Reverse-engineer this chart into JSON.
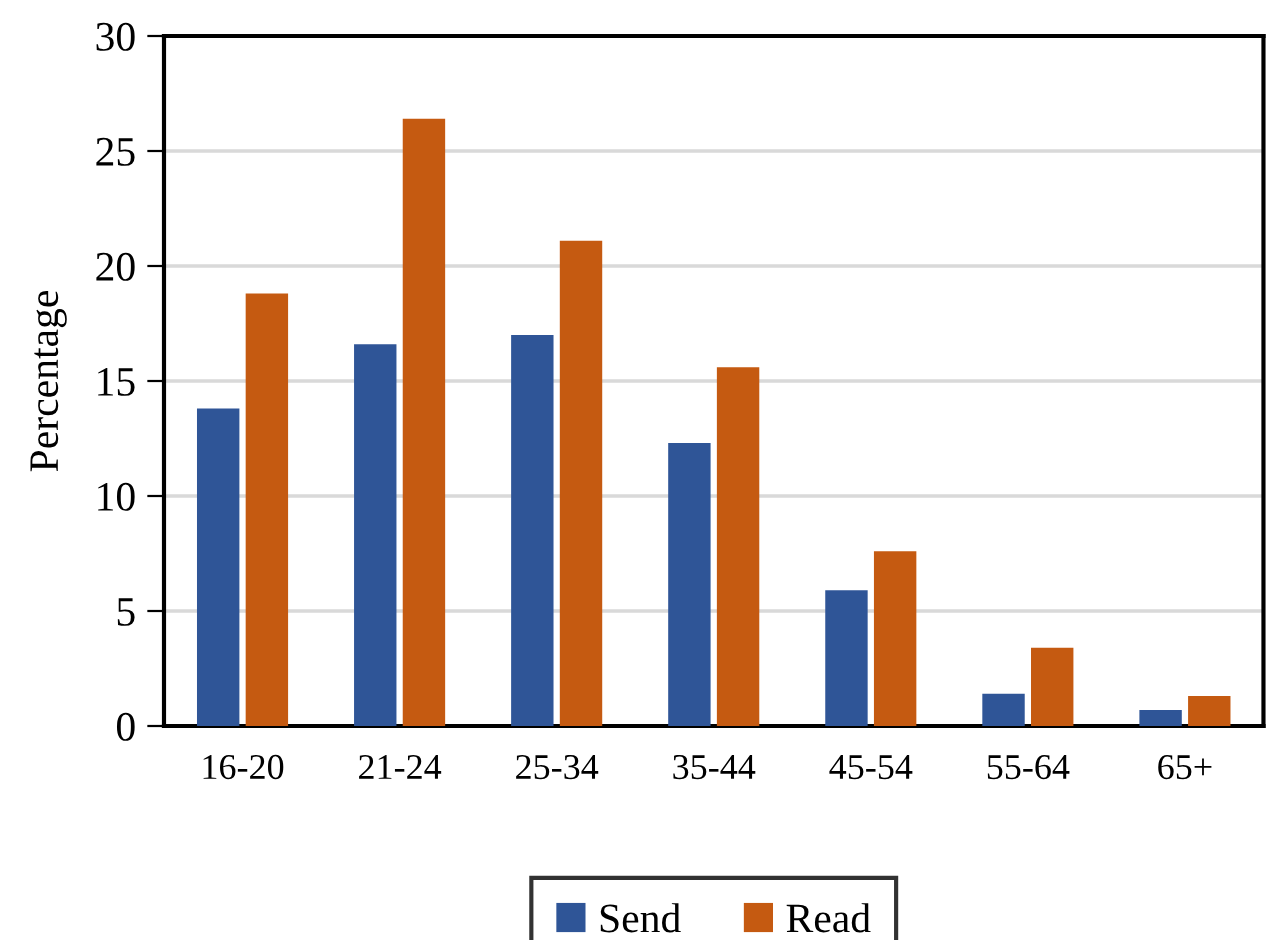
{
  "chart_data": {
    "type": "bar",
    "ylabel": "Percentage",
    "categories": [
      "16-20",
      "21-24",
      "25-34",
      "35-44",
      "45-54",
      "55-64",
      "65+"
    ],
    "series": [
      {
        "name": "Send",
        "color": "#2f5597",
        "values": [
          13.8,
          16.6,
          17.0,
          12.3,
          5.9,
          1.4,
          0.7
        ]
      },
      {
        "name": "Read",
        "color": "#c55a11",
        "values": [
          18.8,
          26.4,
          21.1,
          15.6,
          7.6,
          3.4,
          1.3
        ]
      }
    ],
    "ylim": [
      0,
      30
    ],
    "yticks": [
      0,
      5,
      10,
      15,
      20,
      25,
      30
    ],
    "grid": "y",
    "legend": "bottom"
  }
}
